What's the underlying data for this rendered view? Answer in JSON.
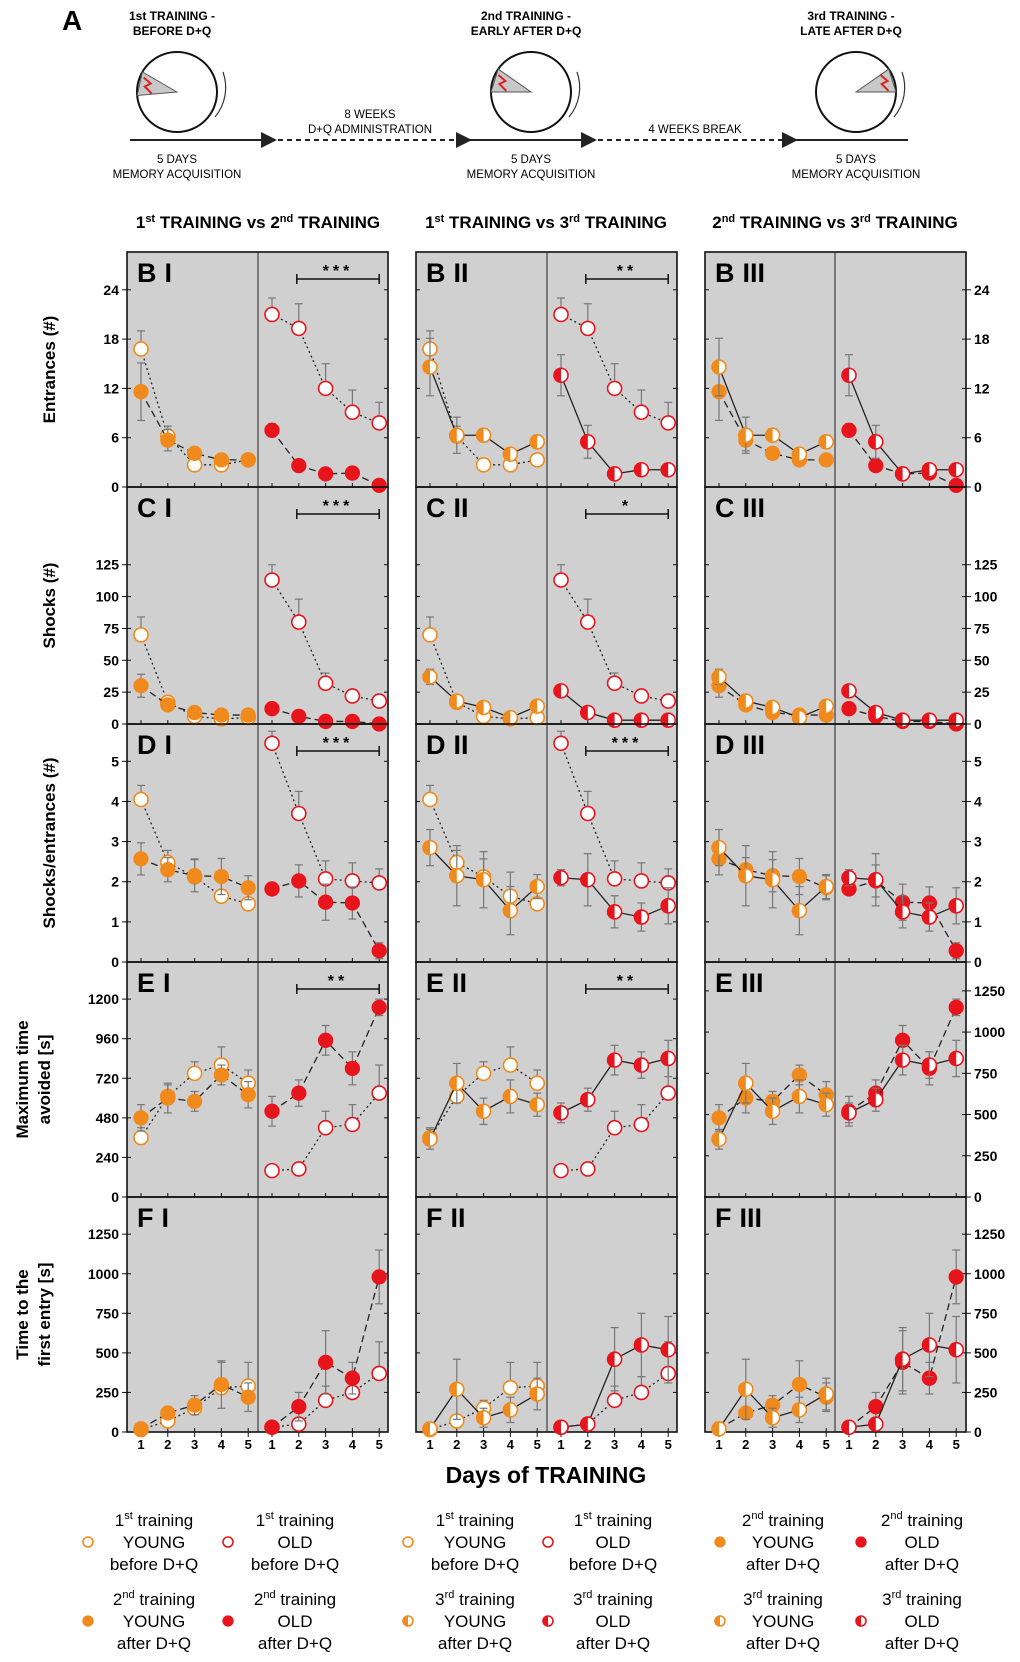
{
  "schematic": {
    "panel_letter": "A",
    "stages": [
      {
        "title1": "1st TRAINING -",
        "title2": "BEFORE D+Q",
        "under1": "5 DAYS",
        "under2": "MEMORY ACQUISITION"
      },
      {
        "title1": "2nd TRAINING -",
        "title2": "EARLY AFTER D+Q",
        "under1": "5 DAYS",
        "under2": "MEMORY ACQUISITION"
      },
      {
        "title1": "3rd TRAINING -",
        "title2": "LATE AFTER D+Q",
        "under1": "5 DAYS",
        "under2": "MEMORY ACQUISITION"
      }
    ],
    "gap1_line1": "8 WEEKS",
    "gap1_line2": "D+Q ADMINISTRATION",
    "gap2": "4 WEEKS BREAK",
    "colors": {
      "shock": "#e02020",
      "zone": "#c8c8c8"
    }
  },
  "column_headers": [
    {
      "a": "1",
      "as": "st",
      "b": " TRAINING  vs  2",
      "bs": "nd",
      "c": " TRAINING"
    },
    {
      "a": "1",
      "as": "st",
      "b": " TRAINING  vs  3",
      "bs": "rd",
      "c": " TRAINING"
    },
    {
      "a": "2",
      "as": "nd",
      "b": " TRAINING  vs  3",
      "bs": "rd",
      "c": " TRAINING"
    }
  ],
  "chart_data": {
    "type": "line",
    "xlabel": "Days of TRAINING",
    "x": [
      "1",
      "2",
      "3",
      "4",
      "5"
    ],
    "colors": {
      "young": "#f08a1c",
      "old": "#e8141c",
      "panel_bg": "#d0d0d0"
    },
    "series_defs": {
      "T1Y": {
        "training": 1,
        "group": "young",
        "marker": "open",
        "line": "dotted"
      },
      "T1O": {
        "training": 1,
        "group": "old",
        "marker": "open",
        "line": "dotted"
      },
      "T2Y": {
        "training": 2,
        "group": "young",
        "marker": "filled",
        "line": "dashed"
      },
      "T2O": {
        "training": 2,
        "group": "old",
        "marker": "filled",
        "line": "dashed"
      },
      "T3Y": {
        "training": 3,
        "group": "young",
        "marker": "half",
        "line": "solid"
      },
      "T3O": {
        "training": 3,
        "group": "old",
        "marker": "half",
        "line": "solid"
      }
    },
    "columns": [
      {
        "left": [
          "T1Y",
          "T2Y"
        ],
        "right": [
          "T1O",
          "T2O"
        ]
      },
      {
        "left": [
          "T1Y",
          "T3Y"
        ],
        "right": [
          "T1O",
          "T3O"
        ]
      },
      {
        "left": [
          "T2Y",
          "T3Y"
        ],
        "right": [
          "T2O",
          "T3O"
        ]
      }
    ],
    "rows": [
      {
        "letter": "B",
        "ylabel": [
          "Entrances (#)"
        ],
        "ylim": [
          0,
          28.6
        ],
        "left_ticks": [
          0,
          6,
          12,
          18,
          24
        ],
        "right_ticks": [
          0,
          6,
          12,
          18,
          24
        ],
        "significance": [
          "***",
          "**",
          ""
        ],
        "values": {
          "T1Y": [
            16.8,
            6.2,
            2.7,
            2.7,
            3.3
          ],
          "T1O": [
            21,
            19.3,
            12,
            9.1,
            7.8
          ],
          "T2Y": [
            11.6,
            5.7,
            4.1,
            3.3,
            3.3
          ],
          "T2O": [
            6.9,
            2.6,
            1.6,
            1.7,
            0.2
          ],
          "T3Y": [
            14.6,
            6.3,
            6.3,
            4.0,
            5.5
          ],
          "T3O": [
            13.6,
            5.5,
            1.6,
            2.1,
            2.1
          ]
        },
        "errors": {
          "T1Y": [
            2.2,
            1.2,
            0.5,
            0.5,
            0.6
          ],
          "T1O": [
            2,
            3,
            3,
            2.7,
            2.5
          ],
          "T2Y": [
            3.5,
            1.3,
            0.5,
            0.5,
            0.6
          ],
          "T2O": [
            0.8,
            0.5,
            0.3,
            0.3,
            0.2
          ],
          "T3Y": [
            3.5,
            2.2,
            0.8,
            0.6,
            0.8
          ],
          "T3O": [
            2.5,
            2,
            0.4,
            0.4,
            0.4
          ]
        }
      },
      {
        "letter": "C",
        "ylabel": [
          "Shocks (#)"
        ],
        "ylim": [
          0,
          186
        ],
        "left_ticks": [
          0,
          25,
          50,
          75,
          100,
          125
        ],
        "right_ticks": [
          0,
          25,
          50,
          75,
          100,
          125
        ],
        "significance": [
          "***",
          "*",
          ""
        ],
        "values": {
          "T1Y": [
            70,
            17,
            6,
            4,
            5
          ],
          "T1O": [
            113,
            80,
            32,
            22,
            18
          ],
          "T2Y": [
            30,
            15,
            9,
            7,
            7
          ],
          "T2O": [
            12,
            6,
            2,
            2,
            0
          ],
          "T3Y": [
            37,
            18,
            13,
            5,
            14
          ],
          "T3O": [
            26,
            9,
            3,
            3,
            3
          ]
        },
        "errors": {
          "T1Y": [
            14,
            5,
            3,
            2,
            2
          ],
          "T1O": [
            12,
            18,
            8,
            5,
            5
          ],
          "T2Y": [
            9,
            4,
            3,
            2,
            2
          ],
          "T2O": [
            3,
            2,
            1,
            1,
            0.5
          ],
          "T3Y": [
            6,
            4,
            3,
            2,
            4
          ],
          "T3O": [
            3,
            3,
            1,
            1,
            1
          ]
        }
      },
      {
        "letter": "D",
        "ylabel": [
          "Shocks/entrances (#)"
        ],
        "ylim": [
          0,
          5.93
        ],
        "left_ticks": [
          0,
          1,
          2,
          3,
          4,
          5
        ],
        "right_ticks": [
          0,
          1,
          2,
          3,
          4,
          5
        ],
        "significance": [
          "***",
          "***",
          ""
        ],
        "values": {
          "T1Y": [
            4.05,
            2.48,
            2.12,
            1.64,
            1.45
          ],
          "T1O": [
            5.45,
            3.7,
            2.07,
            2.02,
            1.97
          ],
          "T2Y": [
            2.57,
            2.3,
            2.15,
            2.13,
            1.85
          ],
          "T2O": [
            1.82,
            2.02,
            1.49,
            1.47,
            0.28
          ],
          "T3Y": [
            2.85,
            2.15,
            2.05,
            1.28,
            1.88
          ],
          "T3O": [
            2.1,
            2.05,
            1.25,
            1.12,
            1.4
          ]
        },
        "errors": {
          "T1Y": [
            0.35,
            0.3,
            0.45,
            0.6,
            0.35
          ],
          "T1O": [
            0.3,
            0.55,
            0.45,
            0.45,
            0.35
          ],
          "T2Y": [
            0.4,
            0.3,
            0.4,
            0.45,
            0.3
          ],
          "T2O": [
            0.15,
            0.4,
            0.45,
            0.4,
            0.2
          ],
          "T3Y": [
            0.45,
            0.75,
            0.7,
            0.6,
            0.3
          ],
          "T3O": [
            0.2,
            0.65,
            0.4,
            0.35,
            0.45
          ]
        }
      },
      {
        "letter": "E",
        "ylabel": [
          "Maximum time",
          "avoided [s]"
        ],
        "ylim": [
          0,
          1425
        ],
        "left_ticks": [
          0,
          240,
          480,
          720,
          960,
          1200
        ],
        "right_ticks": [
          0,
          250,
          500,
          750,
          1000,
          1250
        ],
        "significance": [
          "**",
          "**",
          ""
        ],
        "values": {
          "T1Y": [
            360,
            610,
            750,
            800,
            690
          ],
          "T1O": [
            160,
            170,
            420,
            440,
            630
          ],
          "T2Y": [
            480,
            600,
            580,
            740,
            620
          ],
          "T2O": [
            520,
            630,
            950,
            780,
            1150
          ],
          "T3Y": [
            350,
            690,
            520,
            610,
            560
          ],
          "T3O": [
            510,
            590,
            830,
            800,
            840
          ]
        },
        "errors": {
          "T1Y": [
            60,
            70,
            70,
            110,
            80
          ],
          "T1O": [
            30,
            30,
            100,
            120,
            170
          ],
          "T2Y": [
            80,
            90,
            60,
            60,
            80
          ],
          "T2O": [
            90,
            80,
            90,
            100,
            50
          ],
          "T3Y": [
            60,
            120,
            80,
            100,
            70
          ],
          "T3O": [
            60,
            70,
            90,
            80,
            110
          ]
        }
      },
      {
        "letter": "F",
        "ylabel": [
          "Time to the",
          "first entry [s]"
        ],
        "ylim": [
          0,
          1485
        ],
        "left_ticks": [
          0,
          250,
          500,
          750,
          1000,
          1250
        ],
        "right_ticks": [
          0,
          250,
          500,
          750,
          1000,
          1250
        ],
        "significance": [
          "",
          "",
          ""
        ],
        "values": {
          "T1Y": [
            15,
            70,
            150,
            280,
            290
          ],
          "T1O": [
            30,
            50,
            200,
            250,
            370
          ],
          "T2Y": [
            20,
            120,
            170,
            300,
            220
          ],
          "T2O": [
            30,
            160,
            440,
            340,
            980
          ],
          "T3Y": [
            20,
            270,
            90,
            140,
            240
          ],
          "T3O": [
            30,
            50,
            460,
            550,
            520
          ]
        },
        "errors": {
          "T1Y": [
            10,
            30,
            50,
            160,
            150
          ],
          "T1O": [
            10,
            20,
            90,
            100,
            200
          ],
          "T2Y": [
            10,
            30,
            60,
            150,
            90
          ],
          "T2O": [
            10,
            90,
            200,
            100,
            170
          ],
          "T3Y": [
            10,
            190,
            60,
            80,
            100
          ],
          "T3O": [
            10,
            20,
            200,
            200,
            210
          ]
        }
      }
    ],
    "column_numerals": [
      "I",
      "II",
      "III"
    ]
  },
  "legend": {
    "groups": [
      [
        {
          "series": "T1Y",
          "l1": "1",
          "l1s": "st",
          "l1b": " training",
          "l2": "YOUNG",
          "l3": "before D+Q"
        },
        {
          "series": "T1O",
          "l1": "1",
          "l1s": "st",
          "l1b": " training",
          "l2": "OLD",
          "l3": "before D+Q"
        },
        {
          "series": "T2Y",
          "l1": "2",
          "l1s": "nd",
          "l1b": " training",
          "l2": "YOUNG",
          "l3": "after D+Q"
        },
        {
          "series": "T2O",
          "l1": "2",
          "l1s": "nd",
          "l1b": " training",
          "l2": "OLD",
          "l3": "after D+Q"
        }
      ],
      [
        {
          "series": "T1Y",
          "l1": "1",
          "l1s": "st",
          "l1b": " training",
          "l2": "YOUNG",
          "l3": "before D+Q"
        },
        {
          "series": "T1O",
          "l1": "1",
          "l1s": "st",
          "l1b": " training",
          "l2": "OLD",
          "l3": "before D+Q"
        },
        {
          "series": "T3Y",
          "l1": "3",
          "l1s": "rd",
          "l1b": " training",
          "l2": "YOUNG",
          "l3": "after D+Q"
        },
        {
          "series": "T3O",
          "l1": "3",
          "l1s": "rd",
          "l1b": " training",
          "l2": "OLD",
          "l3": "after D+Q"
        }
      ],
      [
        {
          "series": "T2Y",
          "l1": "2",
          "l1s": "nd",
          "l1b": " training",
          "l2": "YOUNG",
          "l3": "after D+Q"
        },
        {
          "series": "T2O",
          "l1": "2",
          "l1s": "nd",
          "l1b": " training",
          "l2": "OLD",
          "l3": "after D+Q"
        },
        {
          "series": "T3Y",
          "l1": "3",
          "l1s": "rd",
          "l1b": " training",
          "l2": "YOUNG",
          "l3": "after D+Q"
        },
        {
          "series": "T3O",
          "l1": "3",
          "l1s": "rd",
          "l1b": " training",
          "l2": "OLD",
          "l3": "after D+Q"
        }
      ]
    ]
  }
}
